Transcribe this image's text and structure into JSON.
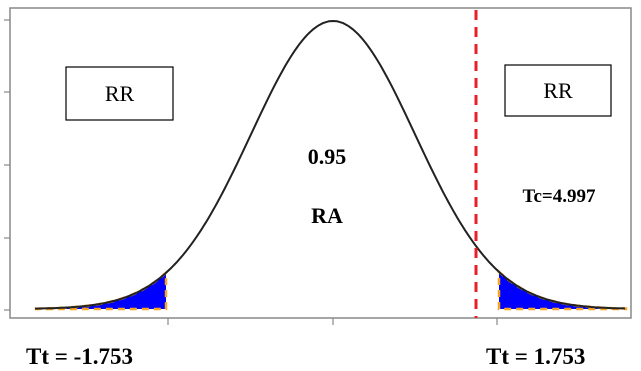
{
  "diagram": {
    "rejection_left_label": "RR",
    "rejection_right_label": "RR",
    "confidence_value": "0.95",
    "acceptance_label": "RA",
    "tc_label": "Tc=4.997",
    "tt_left_label": "Tt = -1.753",
    "tt_right_label": "Tt = 1.753"
  },
  "colors": {
    "tail_fill": "#0000ff",
    "tail_outline": "#f5a623",
    "critical_line": "#e8202a",
    "curve": "#222222",
    "frame": "#888888"
  }
}
